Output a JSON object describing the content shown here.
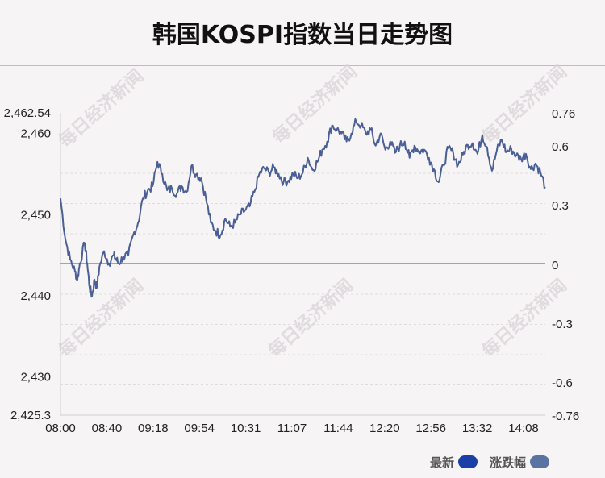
{
  "chart_data": {
    "type": "line",
    "title": "韩国KOSPI指数当日走势图",
    "x_ticks": [
      "08:00",
      "08:40",
      "09:18",
      "09:54",
      "10:31",
      "11:07",
      "11:44",
      "12:20",
      "12:56",
      "13:32",
      "14:08"
    ],
    "y_left_ticks": [
      "2,462.54",
      "2,460",
      "2,450",
      "2,440",
      "2,430",
      "2,425.3"
    ],
    "y_right_ticks": [
      "0.76",
      "0.6",
      "0.3",
      "0",
      "-0.3",
      "-0.6",
      "-0.76"
    ],
    "ylim": [
      2425.3,
      2462.54
    ],
    "baseline": 2444,
    "legend": [
      {
        "label": "最新",
        "color": "#1a3fa6"
      },
      {
        "label": "涨跌幅",
        "color": "#5a73a3"
      }
    ],
    "line_color": "#4a5f95",
    "watermark": "每日经济新闻",
    "series": [
      {
        "x": [
          0,
          0.01,
          0.02,
          0.03,
          0.035,
          0.04,
          0.05,
          0.055,
          0.06,
          0.065,
          0.07,
          0.075,
          0.08,
          0.09,
          0.1,
          0.11,
          0.115,
          0.12,
          0.13,
          0.14,
          0.15,
          0.16,
          0.17,
          0.18,
          0.19,
          0.2,
          0.21,
          0.22,
          0.23,
          0.24,
          0.25,
          0.26,
          0.27,
          0.28,
          0.29,
          0.3,
          0.31,
          0.32,
          0.33,
          0.34,
          0.35,
          0.36,
          0.37,
          0.38,
          0.39,
          0.4,
          0.41,
          0.42,
          0.43,
          0.44,
          0.45,
          0.46,
          0.47,
          0.48,
          0.49,
          0.5,
          0.51,
          0.52,
          0.53,
          0.54,
          0.55,
          0.56,
          0.57,
          0.58,
          0.59,
          0.6,
          0.61,
          0.62,
          0.63,
          0.64,
          0.65,
          0.66,
          0.67,
          0.68,
          0.69,
          0.7,
          0.71,
          0.72,
          0.73,
          0.74,
          0.75,
          0.76,
          0.77,
          0.78,
          0.79,
          0.8,
          0.81,
          0.82,
          0.83,
          0.84,
          0.85,
          0.86,
          0.87,
          0.88,
          0.89,
          0.9,
          0.91,
          0.92,
          0.93,
          0.94,
          0.95,
          0.96,
          0.97,
          0.98,
          0.99,
          1.0
        ],
        "values": [
          2452,
          2447,
          2444.5,
          2443,
          2442,
          2444,
          2446.5,
          2444,
          2441,
          2440,
          2442,
          2441,
          2443.5,
          2445.5,
          2444,
          2445,
          2444.5,
          2444,
          2444.8,
          2445,
          2447.5,
          2449,
          2452,
          2453,
          2453.5,
          2456.5,
          2455,
          2453,
          2453.2,
          2452.6,
          2453.5,
          2452.8,
          2456,
          2455,
          2454.5,
          2452,
          2449,
          2448,
          2447.5,
          2449.5,
          2448.5,
          2449,
          2450,
          2450.5,
          2451,
          2452.8,
          2455,
          2455.7,
          2455.2,
          2455.8,
          2455,
          2454,
          2454.2,
          2455,
          2454.5,
          2455.2,
          2457,
          2455.5,
          2456.5,
          2458,
          2459,
          2461,
          2460.5,
          2460,
          2459,
          2460,
          2461.5,
          2461,
          2460,
          2460.5,
          2458.5,
          2460,
          2458,
          2459,
          2457.6,
          2458.5,
          2459,
          2457,
          2458.5,
          2457.8,
          2458,
          2457,
          2455.6,
          2454,
          2456.1,
          2458.2,
          2457.6,
          2456.1,
          2457.4,
          2458.6,
          2458.8,
          2457.5,
          2459.8,
          2458.3,
          2455.4,
          2457.9,
          2459.2,
          2457.7,
          2458.1,
          2457.3,
          2456.9,
          2457.5,
          2455.6,
          2456.3,
          2455.2,
          2453.4
        ]
      }
    ]
  }
}
